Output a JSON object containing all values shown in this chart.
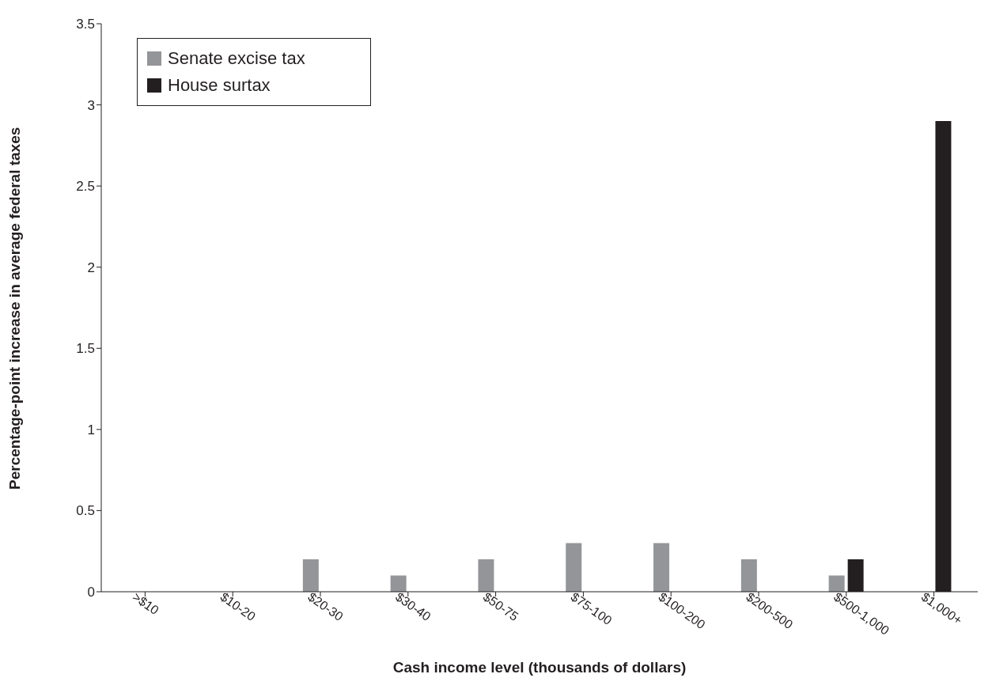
{
  "chart_data": {
    "type": "bar",
    "xlabel": "Cash income level (thousands of dollars)",
    "ylabel": "Percentage-point increase in average federal taxes",
    "categories": [
      ">$10",
      "$10-20",
      "$20-30",
      "$30-40",
      "$50-75",
      "$75-100",
      "$100-200",
      "$200-500",
      "$500-1,000",
      "$1,000+"
    ],
    "series": [
      {
        "name": "Senate excise tax",
        "color": "#939598",
        "values": [
          0,
          0,
          0.2,
          0.1,
          0.2,
          0.3,
          0.3,
          0.2,
          0.1,
          0
        ]
      },
      {
        "name": "House surtax",
        "color": "#231f20",
        "values": [
          0,
          0,
          0,
          0,
          0,
          0,
          0,
          0,
          0.2,
          2.9
        ]
      }
    ],
    "ylim": [
      0,
      3.5
    ],
    "yticks": [
      0,
      0.5,
      1,
      1.5,
      2,
      2.5,
      3,
      3.5
    ],
    "grid": false,
    "legend": "top left"
  }
}
